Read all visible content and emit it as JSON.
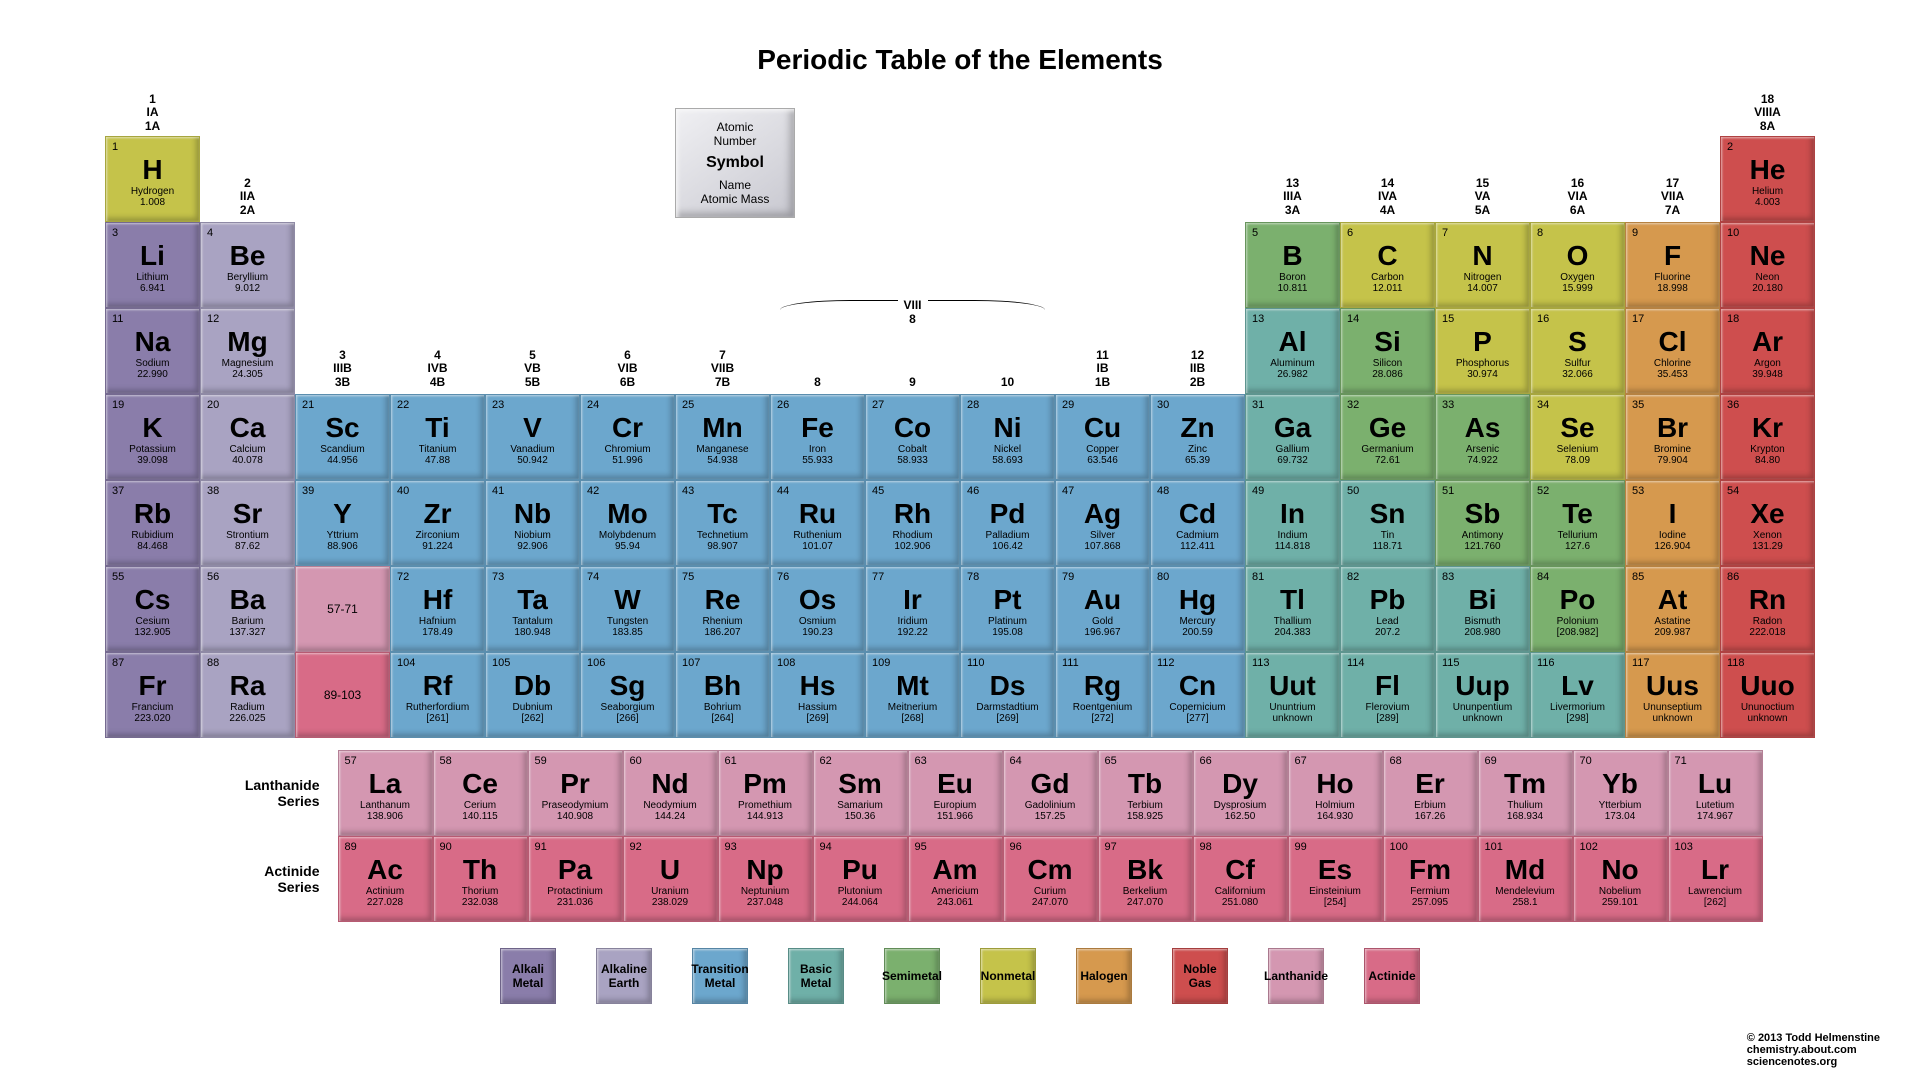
{
  "title": "Periodic Table of the Elements",
  "credit": {
    "line1": "© 2013 Todd Helmenstine",
    "line2": "chemistry.about.com",
    "line3": "sciencenotes.org"
  },
  "key": {
    "l1": "Atomic",
    "l2": "Number",
    "sym": "Symbol",
    "l3": "Name",
    "l4": "Atomic  Mass"
  },
  "viii": {
    "top": "VIII",
    "bot": "8"
  },
  "categories": {
    "alkali": {
      "label": "Alkali Metal",
      "color": "#8a7daa"
    },
    "alkaline": {
      "label": "Alkaline Earth",
      "color": "#a9a3c2"
    },
    "transition": {
      "label": "Transition Metal",
      "color": "#6ca7cd"
    },
    "basic": {
      "label": "Basic Metal",
      "color": "#6fb0a8"
    },
    "semimetal": {
      "label": "Semimetal",
      "color": "#7bb06e"
    },
    "nonmetal": {
      "label": "Nonmetal",
      "color": "#c5c34a"
    },
    "halogen": {
      "label": "Halogen",
      "color": "#d6994e"
    },
    "noble": {
      "label": "Noble Gas",
      "color": "#ce4e4e"
    },
    "lanth": {
      "label": "Lanthanide",
      "color": "#d497b1"
    },
    "act": {
      "label": "Actinide",
      "color": "#d86b87"
    }
  },
  "legend_order": [
    "alkali",
    "alkaline",
    "transition",
    "basic",
    "semimetal",
    "nonmetal",
    "halogen",
    "noble",
    "lanth",
    "act"
  ],
  "groups": [
    {
      "n": "1",
      "old": "IA",
      "alt": "1A"
    },
    {
      "n": "2",
      "old": "IIA",
      "alt": "2A"
    },
    {
      "n": "3",
      "old": "IIIB",
      "alt": "3B"
    },
    {
      "n": "4",
      "old": "IVB",
      "alt": "4B"
    },
    {
      "n": "5",
      "old": "VB",
      "alt": "5B"
    },
    {
      "n": "6",
      "old": "VIB",
      "alt": "6B"
    },
    {
      "n": "7",
      "old": "VIIB",
      "alt": "7B"
    },
    {
      "n": "8",
      "old": "",
      "alt": ""
    },
    {
      "n": "9",
      "old": "",
      "alt": ""
    },
    {
      "n": "10",
      "old": "",
      "alt": ""
    },
    {
      "n": "11",
      "old": "IB",
      "alt": "1B"
    },
    {
      "n": "12",
      "old": "IIB",
      "alt": "2B"
    },
    {
      "n": "13",
      "old": "IIIA",
      "alt": "3A"
    },
    {
      "n": "14",
      "old": "IVA",
      "alt": "4A"
    },
    {
      "n": "15",
      "old": "VA",
      "alt": "5A"
    },
    {
      "n": "16",
      "old": "VIA",
      "alt": "6A"
    },
    {
      "n": "17",
      "old": "VIIA",
      "alt": "7A"
    },
    {
      "n": "18",
      "old": "VIIIA",
      "alt": "8A"
    }
  ],
  "placeholders": {
    "lanth": "57-71",
    "act": "89-103"
  },
  "fblock_labels": {
    "lanth": "Lanthanide Series",
    "act": "Actinide Series"
  },
  "elements": [
    {
      "n": 1,
      "sym": "H",
      "name": "Hydrogen",
      "mass": "1.008",
      "cat": "nonmetal",
      "p": 1,
      "g": 1
    },
    {
      "n": 2,
      "sym": "He",
      "name": "Helium",
      "mass": "4.003",
      "cat": "noble",
      "p": 1,
      "g": 18
    },
    {
      "n": 3,
      "sym": "Li",
      "name": "Lithium",
      "mass": "6.941",
      "cat": "alkali",
      "p": 2,
      "g": 1
    },
    {
      "n": 4,
      "sym": "Be",
      "name": "Beryllium",
      "mass": "9.012",
      "cat": "alkaline",
      "p": 2,
      "g": 2
    },
    {
      "n": 5,
      "sym": "B",
      "name": "Boron",
      "mass": "10.811",
      "cat": "semimetal",
      "p": 2,
      "g": 13
    },
    {
      "n": 6,
      "sym": "C",
      "name": "Carbon",
      "mass": "12.011",
      "cat": "nonmetal",
      "p": 2,
      "g": 14
    },
    {
      "n": 7,
      "sym": "N",
      "name": "Nitrogen",
      "mass": "14.007",
      "cat": "nonmetal",
      "p": 2,
      "g": 15
    },
    {
      "n": 8,
      "sym": "O",
      "name": "Oxygen",
      "mass": "15.999",
      "cat": "nonmetal",
      "p": 2,
      "g": 16
    },
    {
      "n": 9,
      "sym": "F",
      "name": "Fluorine",
      "mass": "18.998",
      "cat": "halogen",
      "p": 2,
      "g": 17
    },
    {
      "n": 10,
      "sym": "Ne",
      "name": "Neon",
      "mass": "20.180",
      "cat": "noble",
      "p": 2,
      "g": 18
    },
    {
      "n": 11,
      "sym": "Na",
      "name": "Sodium",
      "mass": "22.990",
      "cat": "alkali",
      "p": 3,
      "g": 1
    },
    {
      "n": 12,
      "sym": "Mg",
      "name": "Magnesium",
      "mass": "24.305",
      "cat": "alkaline",
      "p": 3,
      "g": 2
    },
    {
      "n": 13,
      "sym": "Al",
      "name": "Aluminum",
      "mass": "26.982",
      "cat": "basic",
      "p": 3,
      "g": 13
    },
    {
      "n": 14,
      "sym": "Si",
      "name": "Silicon",
      "mass": "28.086",
      "cat": "semimetal",
      "p": 3,
      "g": 14
    },
    {
      "n": 15,
      "sym": "P",
      "name": "Phosphorus",
      "mass": "30.974",
      "cat": "nonmetal",
      "p": 3,
      "g": 15
    },
    {
      "n": 16,
      "sym": "S",
      "name": "Sulfur",
      "mass": "32.066",
      "cat": "nonmetal",
      "p": 3,
      "g": 16
    },
    {
      "n": 17,
      "sym": "Cl",
      "name": "Chlorine",
      "mass": "35.453",
      "cat": "halogen",
      "p": 3,
      "g": 17
    },
    {
      "n": 18,
      "sym": "Ar",
      "name": "Argon",
      "mass": "39.948",
      "cat": "noble",
      "p": 3,
      "g": 18
    },
    {
      "n": 19,
      "sym": "K",
      "name": "Potassium",
      "mass": "39.098",
      "cat": "alkali",
      "p": 4,
      "g": 1
    },
    {
      "n": 20,
      "sym": "Ca",
      "name": "Calcium",
      "mass": "40.078",
      "cat": "alkaline",
      "p": 4,
      "g": 2
    },
    {
      "n": 21,
      "sym": "Sc",
      "name": "Scandium",
      "mass": "44.956",
      "cat": "transition",
      "p": 4,
      "g": 3
    },
    {
      "n": 22,
      "sym": "Ti",
      "name": "Titanium",
      "mass": "47.88",
      "cat": "transition",
      "p": 4,
      "g": 4
    },
    {
      "n": 23,
      "sym": "V",
      "name": "Vanadium",
      "mass": "50.942",
      "cat": "transition",
      "p": 4,
      "g": 5
    },
    {
      "n": 24,
      "sym": "Cr",
      "name": "Chromium",
      "mass": "51.996",
      "cat": "transition",
      "p": 4,
      "g": 6
    },
    {
      "n": 25,
      "sym": "Mn",
      "name": "Manganese",
      "mass": "54.938",
      "cat": "transition",
      "p": 4,
      "g": 7
    },
    {
      "n": 26,
      "sym": "Fe",
      "name": "Iron",
      "mass": "55.933",
      "cat": "transition",
      "p": 4,
      "g": 8
    },
    {
      "n": 27,
      "sym": "Co",
      "name": "Cobalt",
      "mass": "58.933",
      "cat": "transition",
      "p": 4,
      "g": 9
    },
    {
      "n": 28,
      "sym": "Ni",
      "name": "Nickel",
      "mass": "58.693",
      "cat": "transition",
      "p": 4,
      "g": 10
    },
    {
      "n": 29,
      "sym": "Cu",
      "name": "Copper",
      "mass": "63.546",
      "cat": "transition",
      "p": 4,
      "g": 11
    },
    {
      "n": 30,
      "sym": "Zn",
      "name": "Zinc",
      "mass": "65.39",
      "cat": "transition",
      "p": 4,
      "g": 12
    },
    {
      "n": 31,
      "sym": "Ga",
      "name": "Gallium",
      "mass": "69.732",
      "cat": "basic",
      "p": 4,
      "g": 13
    },
    {
      "n": 32,
      "sym": "Ge",
      "name": "Germanium",
      "mass": "72.61",
      "cat": "semimetal",
      "p": 4,
      "g": 14
    },
    {
      "n": 33,
      "sym": "As",
      "name": "Arsenic",
      "mass": "74.922",
      "cat": "semimetal",
      "p": 4,
      "g": 15
    },
    {
      "n": 34,
      "sym": "Se",
      "name": "Selenium",
      "mass": "78.09",
      "cat": "nonmetal",
      "p": 4,
      "g": 16
    },
    {
      "n": 35,
      "sym": "Br",
      "name": "Bromine",
      "mass": "79.904",
      "cat": "halogen",
      "p": 4,
      "g": 17
    },
    {
      "n": 36,
      "sym": "Kr",
      "name": "Krypton",
      "mass": "84.80",
      "cat": "noble",
      "p": 4,
      "g": 18
    },
    {
      "n": 37,
      "sym": "Rb",
      "name": "Rubidium",
      "mass": "84.468",
      "cat": "alkali",
      "p": 5,
      "g": 1
    },
    {
      "n": 38,
      "sym": "Sr",
      "name": "Strontium",
      "mass": "87.62",
      "cat": "alkaline",
      "p": 5,
      "g": 2
    },
    {
      "n": 39,
      "sym": "Y",
      "name": "Yttrium",
      "mass": "88.906",
      "cat": "transition",
      "p": 5,
      "g": 3
    },
    {
      "n": 40,
      "sym": "Zr",
      "name": "Zirconium",
      "mass": "91.224",
      "cat": "transition",
      "p": 5,
      "g": 4
    },
    {
      "n": 41,
      "sym": "Nb",
      "name": "Niobium",
      "mass": "92.906",
      "cat": "transition",
      "p": 5,
      "g": 5
    },
    {
      "n": 42,
      "sym": "Mo",
      "name": "Molybdenum",
      "mass": "95.94",
      "cat": "transition",
      "p": 5,
      "g": 6
    },
    {
      "n": 43,
      "sym": "Tc",
      "name": "Technetium",
      "mass": "98.907",
      "cat": "transition",
      "p": 5,
      "g": 7
    },
    {
      "n": 44,
      "sym": "Ru",
      "name": "Ruthenium",
      "mass": "101.07",
      "cat": "transition",
      "p": 5,
      "g": 8
    },
    {
      "n": 45,
      "sym": "Rh",
      "name": "Rhodium",
      "mass": "102.906",
      "cat": "transition",
      "p": 5,
      "g": 9
    },
    {
      "n": 46,
      "sym": "Pd",
      "name": "Palladium",
      "mass": "106.42",
      "cat": "transition",
      "p": 5,
      "g": 10
    },
    {
      "n": 47,
      "sym": "Ag",
      "name": "Silver",
      "mass": "107.868",
      "cat": "transition",
      "p": 5,
      "g": 11
    },
    {
      "n": 48,
      "sym": "Cd",
      "name": "Cadmium",
      "mass": "112.411",
      "cat": "transition",
      "p": 5,
      "g": 12
    },
    {
      "n": 49,
      "sym": "In",
      "name": "Indium",
      "mass": "114.818",
      "cat": "basic",
      "p": 5,
      "g": 13
    },
    {
      "n": 50,
      "sym": "Sn",
      "name": "Tin",
      "mass": "118.71",
      "cat": "basic",
      "p": 5,
      "g": 14
    },
    {
      "n": 51,
      "sym": "Sb",
      "name": "Antimony",
      "mass": "121.760",
      "cat": "semimetal",
      "p": 5,
      "g": 15
    },
    {
      "n": 52,
      "sym": "Te",
      "name": "Tellurium",
      "mass": "127.6",
      "cat": "semimetal",
      "p": 5,
      "g": 16
    },
    {
      "n": 53,
      "sym": "I",
      "name": "Iodine",
      "mass": "126.904",
      "cat": "halogen",
      "p": 5,
      "g": 17
    },
    {
      "n": 54,
      "sym": "Xe",
      "name": "Xenon",
      "mass": "131.29",
      "cat": "noble",
      "p": 5,
      "g": 18
    },
    {
      "n": 55,
      "sym": "Cs",
      "name": "Cesium",
      "mass": "132.905",
      "cat": "alkali",
      "p": 6,
      "g": 1
    },
    {
      "n": 56,
      "sym": "Ba",
      "name": "Barium",
      "mass": "137.327",
      "cat": "alkaline",
      "p": 6,
      "g": 2
    },
    {
      "n": 72,
      "sym": "Hf",
      "name": "Hafnium",
      "mass": "178.49",
      "cat": "transition",
      "p": 6,
      "g": 4
    },
    {
      "n": 73,
      "sym": "Ta",
      "name": "Tantalum",
      "mass": "180.948",
      "cat": "transition",
      "p": 6,
      "g": 5
    },
    {
      "n": 74,
      "sym": "W",
      "name": "Tungsten",
      "mass": "183.85",
      "cat": "transition",
      "p": 6,
      "g": 6
    },
    {
      "n": 75,
      "sym": "Re",
      "name": "Rhenium",
      "mass": "186.207",
      "cat": "transition",
      "p": 6,
      "g": 7
    },
    {
      "n": 76,
      "sym": "Os",
      "name": "Osmium",
      "mass": "190.23",
      "cat": "transition",
      "p": 6,
      "g": 8
    },
    {
      "n": 77,
      "sym": "Ir",
      "name": "Iridium",
      "mass": "192.22",
      "cat": "transition",
      "p": 6,
      "g": 9
    },
    {
      "n": 78,
      "sym": "Pt",
      "name": "Platinum",
      "mass": "195.08",
      "cat": "transition",
      "p": 6,
      "g": 10
    },
    {
      "n": 79,
      "sym": "Au",
      "name": "Gold",
      "mass": "196.967",
      "cat": "transition",
      "p": 6,
      "g": 11
    },
    {
      "n": 80,
      "sym": "Hg",
      "name": "Mercury",
      "mass": "200.59",
      "cat": "transition",
      "p": 6,
      "g": 12
    },
    {
      "n": 81,
      "sym": "Tl",
      "name": "Thallium",
      "mass": "204.383",
      "cat": "basic",
      "p": 6,
      "g": 13
    },
    {
      "n": 82,
      "sym": "Pb",
      "name": "Lead",
      "mass": "207.2",
      "cat": "basic",
      "p": 6,
      "g": 14
    },
    {
      "n": 83,
      "sym": "Bi",
      "name": "Bismuth",
      "mass": "208.980",
      "cat": "basic",
      "p": 6,
      "g": 15
    },
    {
      "n": 84,
      "sym": "Po",
      "name": "Polonium",
      "mass": "[208.982]",
      "cat": "semimetal",
      "p": 6,
      "g": 16
    },
    {
      "n": 85,
      "sym": "At",
      "name": "Astatine",
      "mass": "209.987",
      "cat": "halogen",
      "p": 6,
      "g": 17
    },
    {
      "n": 86,
      "sym": "Rn",
      "name": "Radon",
      "mass": "222.018",
      "cat": "noble",
      "p": 6,
      "g": 18
    },
    {
      "n": 87,
      "sym": "Fr",
      "name": "Francium",
      "mass": "223.020",
      "cat": "alkali",
      "p": 7,
      "g": 1
    },
    {
      "n": 88,
      "sym": "Ra",
      "name": "Radium",
      "mass": "226.025",
      "cat": "alkaline",
      "p": 7,
      "g": 2
    },
    {
      "n": 104,
      "sym": "Rf",
      "name": "Rutherfordium",
      "mass": "[261]",
      "cat": "transition",
      "p": 7,
      "g": 4
    },
    {
      "n": 105,
      "sym": "Db",
      "name": "Dubnium",
      "mass": "[262]",
      "cat": "transition",
      "p": 7,
      "g": 5
    },
    {
      "n": 106,
      "sym": "Sg",
      "name": "Seaborgium",
      "mass": "[266]",
      "cat": "transition",
      "p": 7,
      "g": 6
    },
    {
      "n": 107,
      "sym": "Bh",
      "name": "Bohrium",
      "mass": "[264]",
      "cat": "transition",
      "p": 7,
      "g": 7
    },
    {
      "n": 108,
      "sym": "Hs",
      "name": "Hassium",
      "mass": "[269]",
      "cat": "transition",
      "p": 7,
      "g": 8
    },
    {
      "n": 109,
      "sym": "Mt",
      "name": "Meitnerium",
      "mass": "[268]",
      "cat": "transition",
      "p": 7,
      "g": 9
    },
    {
      "n": 110,
      "sym": "Ds",
      "name": "Darmstadtium",
      "mass": "[269]",
      "cat": "transition",
      "p": 7,
      "g": 10
    },
    {
      "n": 111,
      "sym": "Rg",
      "name": "Roentgenium",
      "mass": "[272]",
      "cat": "transition",
      "p": 7,
      "g": 11
    },
    {
      "n": 112,
      "sym": "Cn",
      "name": "Copernicium",
      "mass": "[277]",
      "cat": "transition",
      "p": 7,
      "g": 12
    },
    {
      "n": 113,
      "sym": "Uut",
      "name": "Ununtrium",
      "mass": "unknown",
      "cat": "basic",
      "p": 7,
      "g": 13
    },
    {
      "n": 114,
      "sym": "Fl",
      "name": "Flerovium",
      "mass": "[289]",
      "cat": "basic",
      "p": 7,
      "g": 14
    },
    {
      "n": 115,
      "sym": "Uup",
      "name": "Ununpentium",
      "mass": "unknown",
      "cat": "basic",
      "p": 7,
      "g": 15
    },
    {
      "n": 116,
      "sym": "Lv",
      "name": "Livermorium",
      "mass": "[298]",
      "cat": "basic",
      "p": 7,
      "g": 16
    },
    {
      "n": 117,
      "sym": "Uus",
      "name": "Ununseptium",
      "mass": "unknown",
      "cat": "halogen",
      "p": 7,
      "g": 17
    },
    {
      "n": 118,
      "sym": "Uuo",
      "name": "Ununoctium",
      "mass": "unknown",
      "cat": "noble",
      "p": 7,
      "g": 18
    }
  ],
  "lanthanides": [
    {
      "n": 57,
      "sym": "La",
      "name": "Lanthanum",
      "mass": "138.906"
    },
    {
      "n": 58,
      "sym": "Ce",
      "name": "Cerium",
      "mass": "140.115"
    },
    {
      "n": 59,
      "sym": "Pr",
      "name": "Praseodymium",
      "mass": "140.908"
    },
    {
      "n": 60,
      "sym": "Nd",
      "name": "Neodymium",
      "mass": "144.24"
    },
    {
      "n": 61,
      "sym": "Pm",
      "name": "Promethium",
      "mass": "144.913"
    },
    {
      "n": 62,
      "sym": "Sm",
      "name": "Samarium",
      "mass": "150.36"
    },
    {
      "n": 63,
      "sym": "Eu",
      "name": "Europium",
      "mass": "151.966"
    },
    {
      "n": 64,
      "sym": "Gd",
      "name": "Gadolinium",
      "mass": "157.25"
    },
    {
      "n": 65,
      "sym": "Tb",
      "name": "Terbium",
      "mass": "158.925"
    },
    {
      "n": 66,
      "sym": "Dy",
      "name": "Dysprosium",
      "mass": "162.50"
    },
    {
      "n": 67,
      "sym": "Ho",
      "name": "Holmium",
      "mass": "164.930"
    },
    {
      "n": 68,
      "sym": "Er",
      "name": "Erbium",
      "mass": "167.26"
    },
    {
      "n": 69,
      "sym": "Tm",
      "name": "Thulium",
      "mass": "168.934"
    },
    {
      "n": 70,
      "sym": "Yb",
      "name": "Ytterbium",
      "mass": "173.04"
    },
    {
      "n": 71,
      "sym": "Lu",
      "name": "Lutetium",
      "mass": "174.967"
    }
  ],
  "actinides": [
    {
      "n": 89,
      "sym": "Ac",
      "name": "Actinium",
      "mass": "227.028"
    },
    {
      "n": 90,
      "sym": "Th",
      "name": "Thorium",
      "mass": "232.038"
    },
    {
      "n": 91,
      "sym": "Pa",
      "name": "Protactinium",
      "mass": "231.036"
    },
    {
      "n": 92,
      "sym": "U",
      "name": "Uranium",
      "mass": "238.029"
    },
    {
      "n": 93,
      "sym": "Np",
      "name": "Neptunium",
      "mass": "237.048"
    },
    {
      "n": 94,
      "sym": "Pu",
      "name": "Plutonium",
      "mass": "244.064"
    },
    {
      "n": 95,
      "sym": "Am",
      "name": "Americium",
      "mass": "243.061"
    },
    {
      "n": 96,
      "sym": "Cm",
      "name": "Curium",
      "mass": "247.070"
    },
    {
      "n": 97,
      "sym": "Bk",
      "name": "Berkelium",
      "mass": "247.070"
    },
    {
      "n": 98,
      "sym": "Cf",
      "name": "Californium",
      "mass": "251.080"
    },
    {
      "n": 99,
      "sym": "Es",
      "name": "Einsteinium",
      "mass": "[254]"
    },
    {
      "n": 100,
      "sym": "Fm",
      "name": "Fermium",
      "mass": "257.095"
    },
    {
      "n": 101,
      "sym": "Md",
      "name": "Mendelevium",
      "mass": "258.1"
    },
    {
      "n": 102,
      "sym": "No",
      "name": "Nobelium",
      "mass": "259.101"
    },
    {
      "n": 103,
      "sym": "Lr",
      "name": "Lawrencium",
      "mass": "[262]"
    }
  ]
}
